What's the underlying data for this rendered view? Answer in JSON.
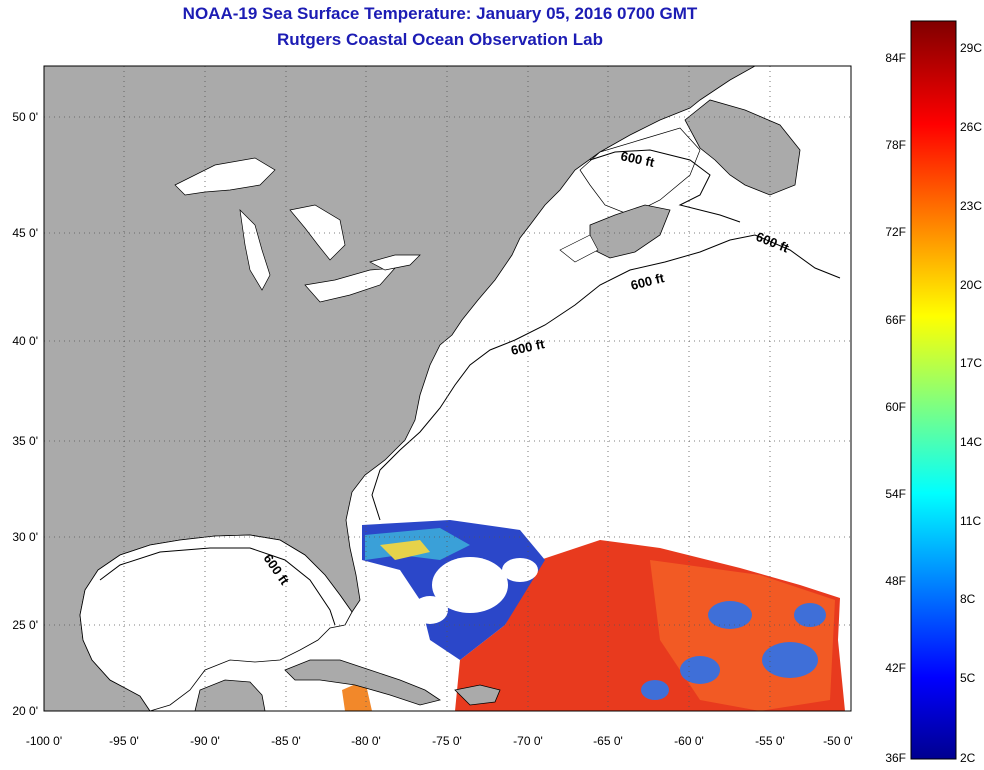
{
  "title": "NOAA-19 Sea Surface Temperature:  January 05, 2016 0700 GMT",
  "subtitle": "Rutgers Coastal Ocean Observation Lab",
  "x_ticks": [
    "-100 0'",
    "-95 0'",
    "-90 0'",
    "-85 0'",
    "-80 0'",
    "-75 0'",
    "-70 0'",
    "-65 0'",
    "-60 0'",
    "-55 0'",
    "-50 0'"
  ],
  "y_ticks": [
    "50 0'",
    "45 0'",
    "40 0'",
    "35 0'",
    "30 0'",
    "25 0'",
    "20 0'"
  ],
  "contour_labels": [
    "600 ft",
    "600 ft",
    "600 ft",
    "600 ft",
    "600 ft"
  ],
  "colorbar": {
    "fahrenheit": [
      "84F",
      "78F",
      "72F",
      "66F",
      "60F",
      "54F",
      "48F",
      "42F",
      "36F"
    ],
    "celsius": [
      "29C",
      "26C",
      "23C",
      "20C",
      "17C",
      "14C",
      "11C",
      "8C",
      "5C",
      "2C"
    ],
    "colormap": "jet"
  },
  "colors": {
    "title": "#1c1cb4",
    "land": "#aaaaaa",
    "ocean_no_data": "#ffffff",
    "sst_warm": "#e83a1e",
    "sst_cool": "#2b47c9"
  }
}
